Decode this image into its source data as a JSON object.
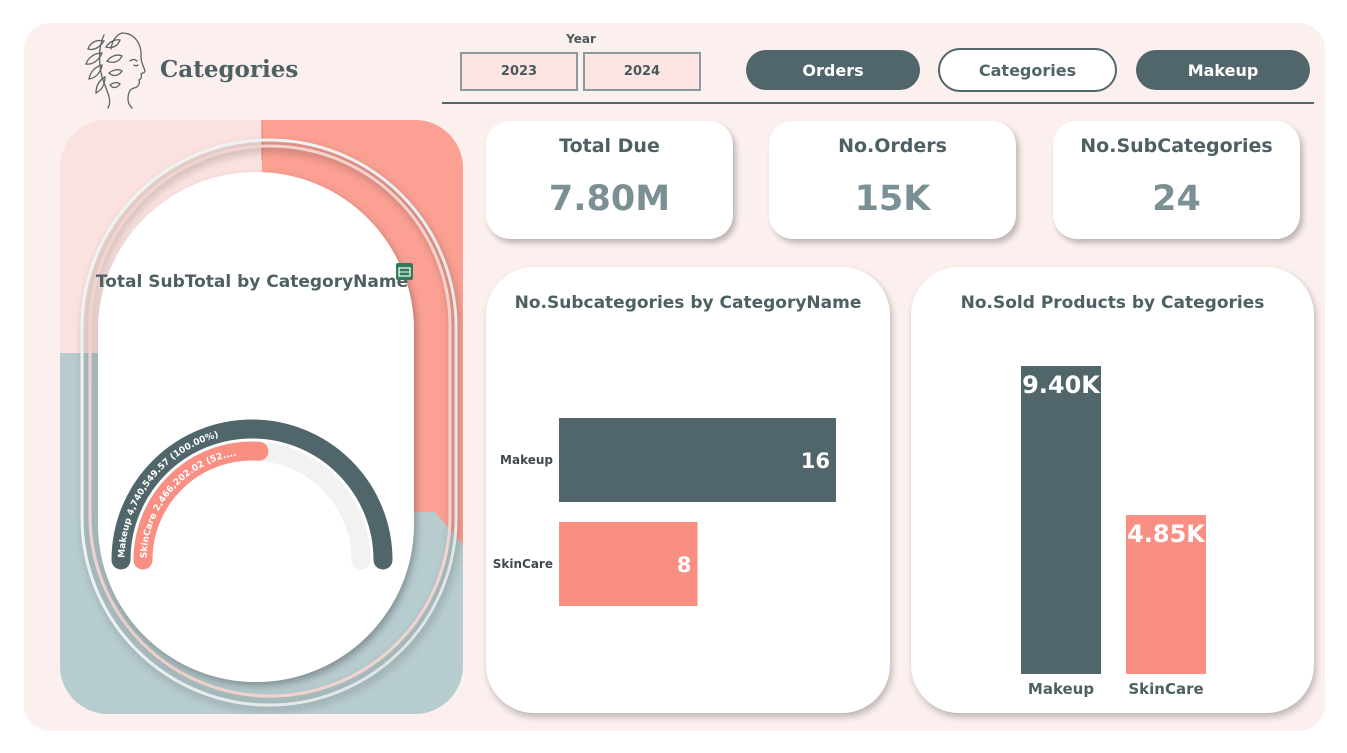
{
  "header": {
    "title": "Categories",
    "year_label": "Year",
    "years": [
      "2023",
      "2024"
    ],
    "nav": {
      "orders": "Orders",
      "categories": "Categories",
      "makeup": "Makeup"
    }
  },
  "kpis": {
    "total_due": {
      "title": "Total Due",
      "value": "7.80M"
    },
    "orders": {
      "title": "No.Orders",
      "value": "15K"
    },
    "subcategories": {
      "title": "No.SubCategories",
      "value": "24"
    }
  },
  "colors": {
    "dark": "#51666a",
    "salmon": "#f98e82",
    "board": "#fcf0ee",
    "text": "#4d6063"
  },
  "icons": [
    "face-leaf-logo-icon",
    "visual-table-icon"
  ],
  "chart_data": [
    {
      "type": "gauge",
      "title": "Total SubTotal by CategoryName",
      "categories": [
        "Makeup",
        "SkinCare"
      ],
      "values": [
        4740549.57,
        2466202.02
      ],
      "data_labels": [
        "Makeup 4,740,549.57 (100.00%)",
        "SkinCare 2,466,202.02 (52...."
      ]
    },
    {
      "type": "bar",
      "orientation": "horizontal",
      "title": "No.Subcategories by CategoryName",
      "categories": [
        "Makeup",
        "SkinCare"
      ],
      "values": [
        16,
        8
      ],
      "data_labels": [
        "16",
        "8"
      ],
      "xlim": [
        0,
        16
      ]
    },
    {
      "type": "bar",
      "orientation": "vertical",
      "title": "No.Sold Products by Categories",
      "categories": [
        "Makeup",
        "SkinCare"
      ],
      "values": [
        9400,
        4850
      ],
      "data_labels": [
        "9.40K",
        "4.85K"
      ],
      "ylim": [
        0,
        9400
      ]
    }
  ]
}
